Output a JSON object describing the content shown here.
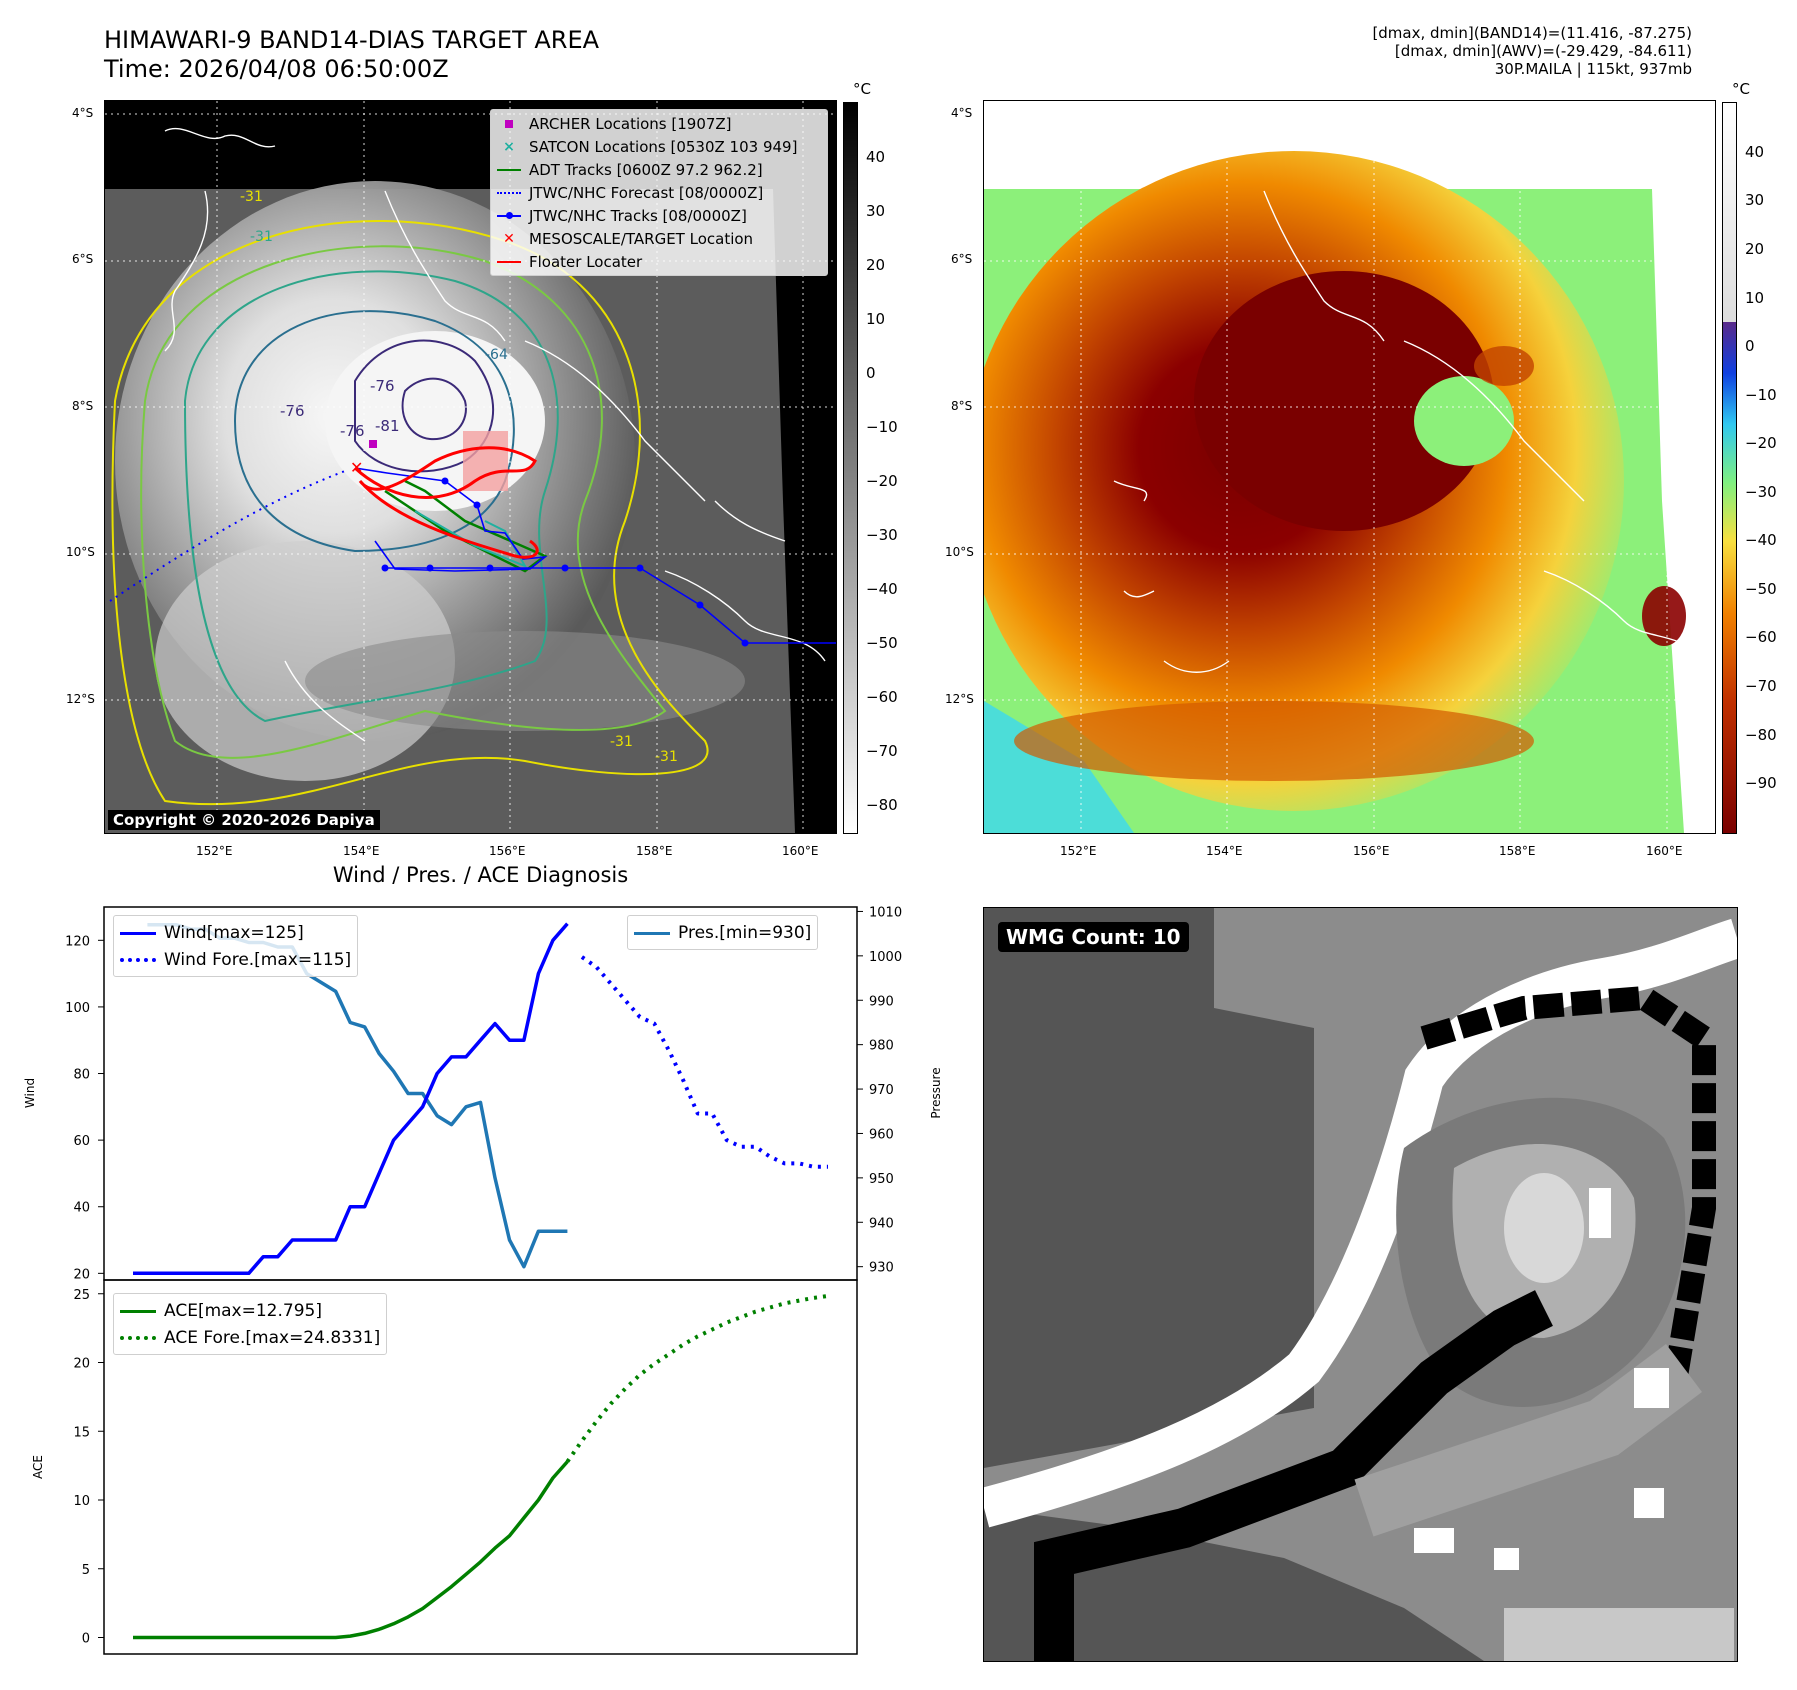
{
  "header": {
    "title_line1": "HIMAWARI-9 BAND14-DIAS TARGET AREA",
    "title_line2": "Time: 2026/04/08 06:50:00Z",
    "info_line1": "[dmax, dmin](BAND14)=(11.416, -87.275)",
    "info_line2": "[dmax, dmin](AWV)=(-29.429, -84.611)",
    "info_line3": "30P.MAILA | 115kt, 937mb"
  },
  "map_axes": {
    "lat_ticks": [
      "4°S",
      "6°S",
      "8°S",
      "10°S",
      "12°S"
    ],
    "lon_ticks": [
      "152°E",
      "154°E",
      "156°E",
      "158°E",
      "160°E"
    ]
  },
  "ir_colorbar": {
    "unit": "°C",
    "ticks": [
      "40",
      "30",
      "20",
      "10",
      "0",
      "−10",
      "−20",
      "−30",
      "−40",
      "−50",
      "−60",
      "−70",
      "−80"
    ]
  },
  "awv_colorbar": {
    "unit": "°C",
    "ticks": [
      "40",
      "30",
      "20",
      "10",
      "0",
      "−10",
      "−20",
      "−30",
      "−40",
      "−50",
      "−60",
      "−70",
      "−80",
      "−90"
    ]
  },
  "map_legend": [
    {
      "label": "ARCHER Locations [1907Z]",
      "color": "#c000c0",
      "style": "square"
    },
    {
      "label": "SATCON Locations [0530Z 103 949]",
      "color": "#20b0a0",
      "style": "x"
    },
    {
      "label": "ADT Tracks [0600Z 97.2 962.2]",
      "color": "#008000",
      "style": "line"
    },
    {
      "label": "JTWC/NHC Forecast [08/0000Z]",
      "color": "#0000ff",
      "style": "dotted"
    },
    {
      "label": "JTWC/NHC Tracks [08/0000Z]",
      "color": "#0000ff",
      "style": "line-dot"
    },
    {
      "label": "MESOSCALE/TARGET Location",
      "color": "#ff0000",
      "style": "xred"
    },
    {
      "label": "Floater Locater",
      "color": "#ff0000",
      "style": "line"
    }
  ],
  "contour_labels": [
    "-31",
    "-31",
    "-64",
    "-76",
    "-76",
    "-76",
    "-81",
    "-31",
    "-31"
  ],
  "copyright": "Copyright © 2020-2026 Dapiya",
  "wmg": {
    "label": "WMG Count: 10"
  },
  "chart_data": [
    {
      "type": "line",
      "title": "Wind / Pres. / ACE Diagnosis",
      "ylabel": "Wind",
      "y2label": "Pressure",
      "ylim": [
        18,
        130
      ],
      "y2lim": [
        927,
        1011
      ],
      "yticks": [
        20,
        40,
        60,
        80,
        100,
        120
      ],
      "y2ticks": [
        930,
        940,
        950,
        960,
        970,
        980,
        990,
        1000,
        1010
      ],
      "series": [
        {
          "name": "Wind[max=125]",
          "color": "#0000ff",
          "style": "solid",
          "x": [
            0,
            1,
            2,
            3,
            4,
            5,
            6,
            7,
            8,
            9,
            10,
            11,
            12,
            13,
            14,
            15,
            16,
            17,
            18,
            19,
            20,
            21,
            22,
            23,
            24,
            25,
            26,
            27,
            28,
            29,
            30
          ],
          "values": [
            20,
            20,
            20,
            20,
            20,
            20,
            20,
            20,
            20,
            25,
            25,
            30,
            30,
            30,
            30,
            40,
            40,
            50,
            60,
            65,
            70,
            80,
            85,
            85,
            90,
            95,
            90,
            90,
            110,
            120,
            125
          ]
        },
        {
          "name": "Wind Fore.[max=115]",
          "color": "#0000ff",
          "style": "dotted",
          "x": [
            31,
            32,
            33,
            34,
            35,
            36,
            37,
            38,
            39,
            40,
            41,
            42,
            43,
            44,
            45,
            46,
            47,
            48
          ],
          "values": [
            115,
            112,
            107,
            102,
            97,
            95,
            87,
            78,
            68,
            68,
            60,
            58,
            58,
            55,
            53,
            53,
            52,
            52
          ]
        },
        {
          "name": "Pres.[min=930]",
          "color": "#1f77b4",
          "style": "solid",
          "axis": "right",
          "x": [
            1,
            2,
            3,
            4,
            5,
            6,
            7,
            8,
            9,
            10,
            11,
            12,
            13,
            14,
            15,
            16,
            17,
            18,
            19,
            20,
            21,
            22,
            23,
            24,
            25,
            26,
            27,
            28,
            29,
            30
          ],
          "values": [
            1007,
            1007,
            1007,
            1006,
            1006,
            1004,
            1004,
            1003,
            1003,
            1002,
            1002,
            996,
            994,
            992,
            985,
            984,
            978,
            974,
            969,
            969,
            964,
            962,
            966,
            967,
            950,
            936,
            930,
            938,
            938,
            938
          ]
        }
      ]
    },
    {
      "type": "line",
      "ylabel": "ACE",
      "ylim": [
        -1.2,
        26
      ],
      "yticks": [
        0,
        5,
        10,
        15,
        20,
        25
      ],
      "series": [
        {
          "name": "ACE[max=12.795]",
          "color": "#008000",
          "style": "solid",
          "x": [
            0,
            1,
            2,
            3,
            4,
            5,
            6,
            7,
            8,
            9,
            10,
            11,
            12,
            13,
            14,
            15,
            16,
            17,
            18,
            19,
            20,
            21,
            22,
            23,
            24,
            25,
            26,
            27,
            28,
            29,
            30
          ],
          "values": [
            0,
            0,
            0,
            0,
            0,
            0,
            0,
            0,
            0,
            0,
            0,
            0,
            0,
            0,
            0,
            0.1,
            0.3,
            0.6,
            1.0,
            1.5,
            2.1,
            2.9,
            3.7,
            4.6,
            5.5,
            6.5,
            7.4,
            8.7,
            10.0,
            11.6,
            12.795
          ]
        },
        {
          "name": "ACE Fore.[max=24.8331]",
          "color": "#008000",
          "style": "dotted",
          "x": [
            30,
            31,
            32,
            33,
            34,
            35,
            36,
            37,
            38,
            39,
            40,
            41,
            42,
            43,
            44,
            45,
            46,
            47,
            48
          ],
          "values": [
            12.795,
            14.3,
            15.7,
            17.0,
            18.1,
            19.1,
            19.9,
            20.6,
            21.3,
            21.9,
            22.4,
            22.9,
            23.3,
            23.7,
            24.0,
            24.3,
            24.5,
            24.7,
            24.8331
          ]
        }
      ]
    }
  ]
}
